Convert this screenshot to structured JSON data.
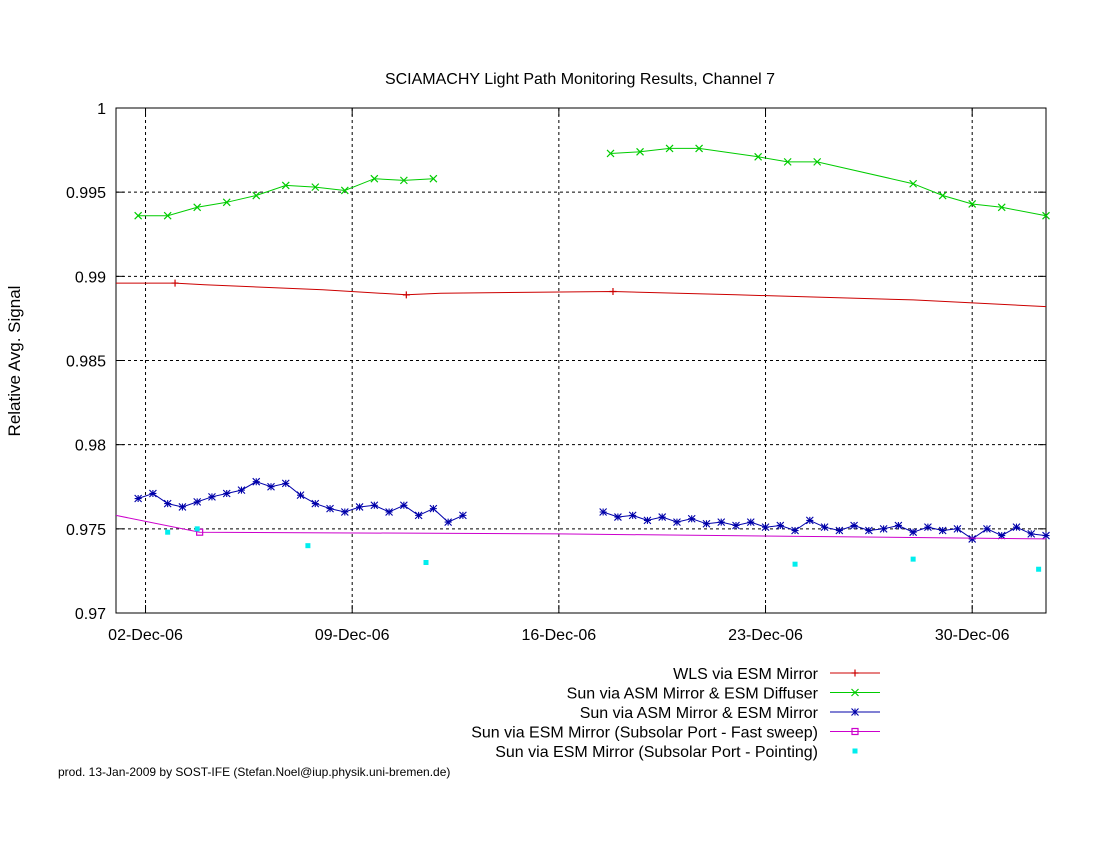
{
  "chart_data": {
    "type": "line",
    "title": "SCIAMACHY Light Path Monitoring Results, Channel 7",
    "ylabel": "Relative Avg. Signal",
    "xlabel": "",
    "ylim": [
      0.97,
      1.0
    ],
    "xlim": [
      "2006-12-01T00:00",
      "2007-01-01T12:00"
    ],
    "yticks": [
      "0.97",
      "0.975",
      "0.98",
      "0.985",
      "0.99",
      "0.995",
      "1"
    ],
    "xticks": [
      {
        "date": "2006-12-02",
        "label": "02-Dec-06"
      },
      {
        "date": "2006-12-09",
        "label": "09-Dec-06"
      },
      {
        "date": "2006-12-16",
        "label": "16-Dec-06"
      },
      {
        "date": "2006-12-23",
        "label": "23-Dec-06"
      },
      {
        "date": "2006-12-30",
        "label": "30-Dec-06"
      }
    ],
    "grid": true,
    "legend_position": "below-right",
    "series": [
      {
        "name": "WLS via ESM Mirror",
        "color": "#cc0000",
        "marker": "plus",
        "x": [
          "2006-12-01T00:00",
          "2006-12-03T00:00",
          "2006-12-04T00:00",
          "2006-12-08T00:00",
          "2006-12-10T20:00",
          "2006-12-12T00:00",
          "2006-12-17T20:00",
          "2006-12-22T00:00",
          "2006-12-28T00:00",
          "2007-01-01T12:00"
        ],
        "y": [
          0.9896,
          0.9896,
          0.9895,
          0.9892,
          0.9889,
          0.989,
          0.9891,
          0.9889,
          0.9886,
          0.9882
        ],
        "marked_x": [
          "2006-12-03T00:00",
          "2006-12-10T20:00",
          "2006-12-17T20:00"
        ]
      },
      {
        "name": "Sun via ASM Mirror & ESM Diffuser",
        "color": "#00cc00",
        "marker": "cross",
        "segments": [
          {
            "x": [
              "2006-12-01T18:00",
              "2006-12-02T18:00",
              "2006-12-03T18:00",
              "2006-12-04T18:00",
              "2006-12-05T18:00",
              "2006-12-06T18:00",
              "2006-12-07T18:00",
              "2006-12-08T18:00",
              "2006-12-09T18:00",
              "2006-12-10T18:00",
              "2006-12-11T18:00"
            ],
            "y": [
              0.9936,
              0.9936,
              0.9941,
              0.9944,
              0.9948,
              0.9954,
              0.9953,
              0.9951,
              0.9958,
              0.9957,
              0.9958
            ]
          },
          {
            "x": [
              "2006-12-17T18:00",
              "2006-12-18T18:00",
              "2006-12-19T18:00",
              "2006-12-20T18:00",
              "2006-12-22T18:00",
              "2006-12-23T18:00",
              "2006-12-24T18:00",
              "2006-12-28T00:00",
              "2006-12-29T00:00",
              "2006-12-30T00:00",
              "2006-12-31T00:00",
              "2007-01-01T12:00"
            ],
            "y": [
              0.9973,
              0.9974,
              0.9976,
              0.9976,
              0.9971,
              0.9968,
              0.9968,
              0.9955,
              0.9948,
              0.9943,
              0.9941,
              0.9936
            ]
          }
        ]
      },
      {
        "name": "Sun via ASM Mirror & ESM Mirror",
        "color": "#0000aa",
        "marker": "star",
        "segments": [
          {
            "x": [
              "2006-12-01T18:00",
              "2006-12-02T06:00",
              "2006-12-02T18:00",
              "2006-12-03T06:00",
              "2006-12-03T18:00",
              "2006-12-04T06:00",
              "2006-12-04T18:00",
              "2006-12-05T06:00",
              "2006-12-05T18:00",
              "2006-12-06T06:00",
              "2006-12-06T18:00",
              "2006-12-07T06:00",
              "2006-12-07T18:00",
              "2006-12-08T06:00",
              "2006-12-08T18:00",
              "2006-12-09T06:00",
              "2006-12-09T18:00",
              "2006-12-10T06:00",
              "2006-12-10T18:00",
              "2006-12-11T06:00",
              "2006-12-11T18:00",
              "2006-12-12T06:00",
              "2006-12-12T18:00"
            ],
            "y": [
              0.9768,
              0.9771,
              0.9765,
              0.9763,
              0.9766,
              0.9769,
              0.9771,
              0.9773,
              0.9778,
              0.9775,
              0.9777,
              0.977,
              0.9765,
              0.9762,
              0.976,
              0.9763,
              0.9764,
              0.976,
              0.9764,
              0.9758,
              0.9762,
              0.9754,
              0.9758
            ]
          },
          {
            "x": [
              "2006-12-17T12:00",
              "2006-12-18T00:00",
              "2006-12-18T12:00",
              "2006-12-19T00:00",
              "2006-12-19T12:00",
              "2006-12-20T00:00",
              "2006-12-20T12:00",
              "2006-12-21T00:00",
              "2006-12-21T12:00",
              "2006-12-22T00:00",
              "2006-12-22T12:00",
              "2006-12-23T00:00",
              "2006-12-23T12:00",
              "2006-12-24T00:00",
              "2006-12-24T12:00",
              "2006-12-25T00:00",
              "2006-12-25T12:00",
              "2006-12-26T00:00",
              "2006-12-26T12:00",
              "2006-12-27T00:00",
              "2006-12-27T12:00",
              "2006-12-28T00:00",
              "2006-12-28T12:00",
              "2006-12-29T00:00",
              "2006-12-29T12:00",
              "2006-12-30T00:00",
              "2006-12-30T12:00",
              "2006-12-31T00:00",
              "2006-12-31T12:00",
              "2007-01-01T00:00",
              "2007-01-01T12:00"
            ],
            "y": [
              0.976,
              0.9757,
              0.9758,
              0.9755,
              0.9757,
              0.9754,
              0.9756,
              0.9753,
              0.9754,
              0.9752,
              0.9754,
              0.9751,
              0.9752,
              0.9749,
              0.9755,
              0.9751,
              0.9749,
              0.9752,
              0.9749,
              0.975,
              0.9752,
              0.9748,
              0.9751,
              0.9749,
              0.975,
              0.9744,
              0.975,
              0.9746,
              0.9751,
              0.9747,
              0.9746
            ]
          }
        ]
      },
      {
        "name": "Sun via ESM Mirror (Subsolar Port - Fast sweep)",
        "color": "#cc00cc",
        "marker": "square",
        "x": [
          "2006-12-01T00:00",
          "2006-12-03T20:00",
          "2006-12-16T00:00",
          "2007-01-01T12:00"
        ],
        "y": [
          0.9758,
          0.9748,
          0.9747,
          0.9744
        ],
        "marked_x": [
          "2006-12-03T20:00"
        ]
      },
      {
        "name": "Sun via ESM Mirror (Subsolar Port - Pointing)",
        "color": "#00eeee",
        "marker": "dot",
        "x": [
          "2006-12-02T18:00",
          "2006-12-03T18:00",
          "2006-12-07T12:00",
          "2006-12-11T12:00",
          "2006-12-24T00:00",
          "2006-12-28T00:00",
          "2007-01-01T06:00"
        ],
        "y": [
          0.9748,
          0.975,
          0.974,
          0.973,
          0.9729,
          0.9732,
          0.9726
        ]
      }
    ]
  },
  "footer": {
    "credit": "prod. 13-Jan-2009 by SOST-IFE (Stefan.Noel@iup.physik.uni-bremen.de)"
  }
}
